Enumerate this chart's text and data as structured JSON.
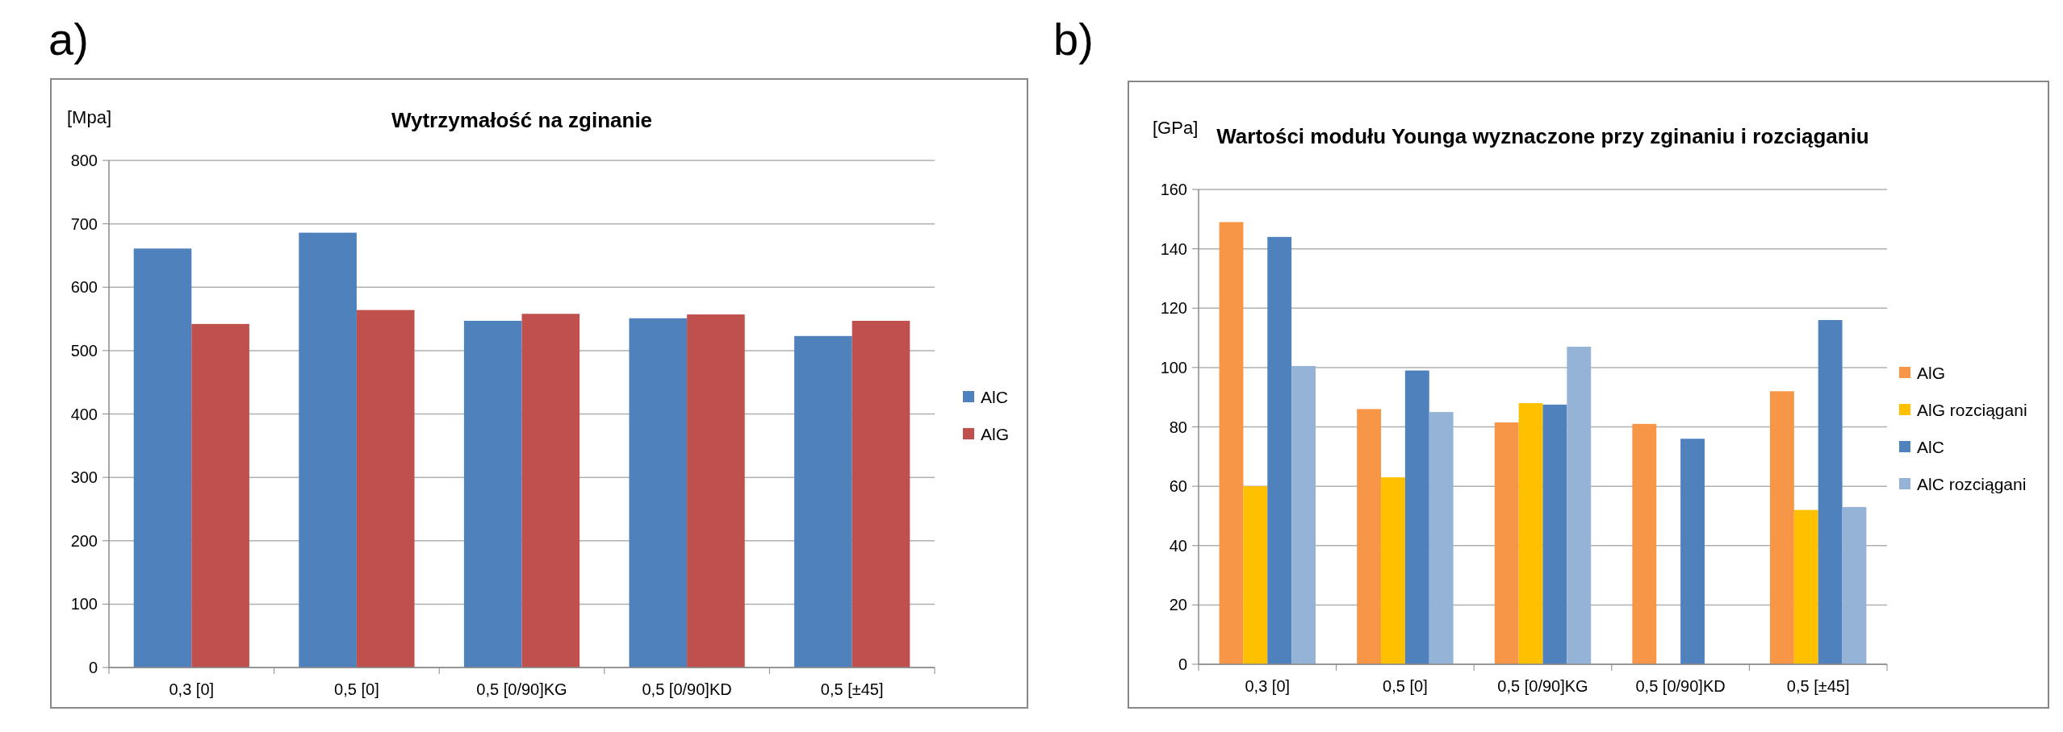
{
  "chart_data": [
    {
      "type": "bar",
      "title": "Wytrzymałość na zginanie",
      "ylabel": "[Mpa]",
      "annotations": [
        "a)"
      ],
      "categories": [
        "0,3 [0]",
        "0,5 [0]",
        "0,5 [0/90]KG",
        "0,5 [0/90]KD",
        "0,5 [±45]"
      ],
      "series": [
        {
          "name": "AlC",
          "color": "#4f81bd",
          "values": [
            661,
            686,
            547,
            551,
            523
          ]
        },
        {
          "name": "AlG",
          "color": "#c0504d",
          "values": [
            542,
            564,
            558,
            557,
            547
          ]
        }
      ],
      "ylim": [
        0,
        800
      ],
      "yticks": [
        0,
        100,
        200,
        300,
        400,
        500,
        600,
        700,
        800
      ],
      "grid": "y",
      "legend": "right"
    },
    {
      "type": "bar",
      "title": "Wartości modułu Younga wyznaczone przy zginaniu i rozciąganiu",
      "ylabel": "[GPa]",
      "annotations": [
        "b)"
      ],
      "categories": [
        "0,3 [0]",
        "0,5 [0]",
        "0,5 [0/90]KG",
        "0,5 [0/90]KD",
        "0,5 [±45]"
      ],
      "series": [
        {
          "name": "AlG",
          "color": "#f79646",
          "values": [
            149,
            86,
            81.5,
            81,
            92
          ]
        },
        {
          "name": "AlG rozciągani",
          "color": "#ffc000",
          "values": [
            60,
            63,
            88,
            null,
            52
          ]
        },
        {
          "name": "AlC",
          "color": "#4f81bd",
          "values": [
            144,
            99,
            87.5,
            76,
            116
          ]
        },
        {
          "name": "AlC rozciągani",
          "color": "#95b3d7",
          "values": [
            100.5,
            85,
            107,
            null,
            53
          ]
        }
      ],
      "ylim": [
        0,
        160
      ],
      "yticks": [
        0,
        20,
        40,
        60,
        80,
        100,
        120,
        140,
        160
      ],
      "grid": "y",
      "legend": "right"
    }
  ]
}
